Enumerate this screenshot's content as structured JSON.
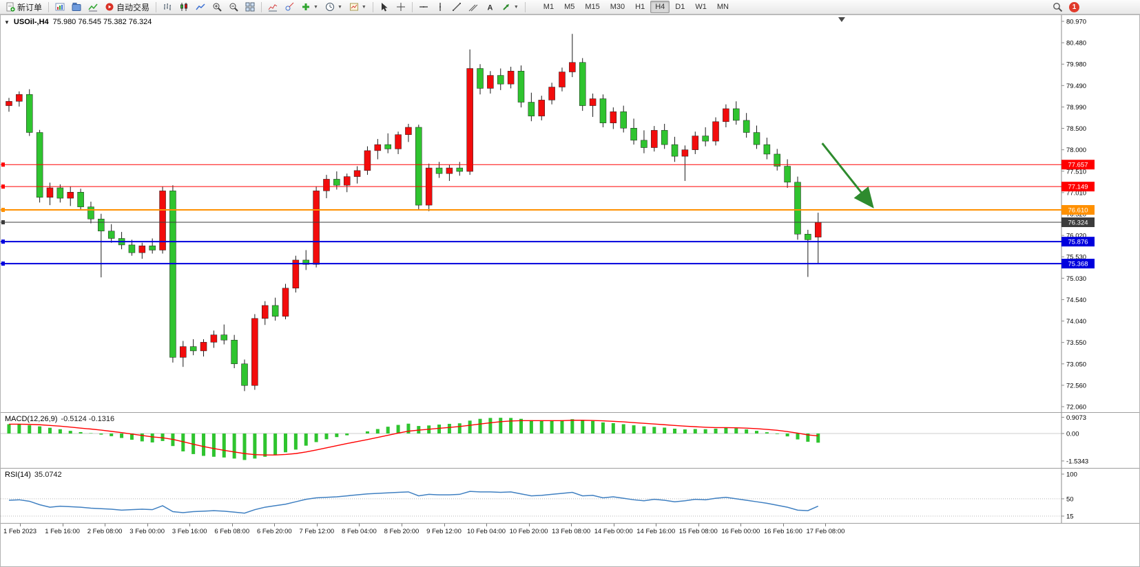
{
  "toolbar": {
    "new_order_label": "新订单",
    "auto_trading_label": "自动交易",
    "timeframes": [
      "M1",
      "M5",
      "M15",
      "M30",
      "H1",
      "H4",
      "D1",
      "W1",
      "MN"
    ],
    "active_timeframe": "H4",
    "notification_count": "1"
  },
  "chart": {
    "collapse_arrow": "▼",
    "symbol_period": "USOil-,H4",
    "ohlc": "75.980 76.545 75.382 76.324"
  },
  "chart_data": {
    "type": "candlestick",
    "symbol": "USOil-",
    "period": "H4",
    "colors": {
      "up": "#f20c0c",
      "down": "#2fc42f",
      "wick": "#1a1a1a",
      "macd_hist": "#2fc42f",
      "macd_signal": "#ff0000",
      "rsi_line": "#3e7fc1",
      "arrow": "#2e8b2e"
    },
    "price_axis": {
      "max": 80.97,
      "min": 72.06,
      "ticks": [
        "80.970",
        "80.480",
        "79.980",
        "79.490",
        "78.990",
        "78.500",
        "78.000",
        "77.510",
        "77.010",
        "76.520",
        "76.020",
        "75.530",
        "75.030",
        "74.540",
        "74.040",
        "73.550",
        "73.050",
        "72.560",
        "72.060"
      ]
    },
    "time_labels": [
      "1 Feb 2023",
      "1 Feb 16:00",
      "2 Feb 08:00",
      "3 Feb 00:00",
      "3 Feb 16:00",
      "6 Feb 08:00",
      "6 Feb 20:00",
      "7 Feb 12:00",
      "8 Feb 04:00",
      "8 Feb 20:00",
      "9 Feb 12:00",
      "10 Feb 04:00",
      "10 Feb 20:00",
      "13 Feb 08:00",
      "14 Feb 00:00",
      "14 Feb 16:00",
      "15 Feb 08:00",
      "16 Feb 00:00",
      "16 Feb 16:00",
      "17 Feb 08:00"
    ],
    "candles": [
      [
        79.02,
        79.2,
        78.88,
        79.12
      ],
      [
        79.12,
        79.35,
        79.0,
        79.28
      ],
      [
        79.28,
        79.4,
        78.32,
        78.4
      ],
      [
        78.4,
        78.46,
        76.78,
        76.9
      ],
      [
        76.9,
        77.24,
        76.72,
        77.12
      ],
      [
        77.12,
        77.2,
        76.78,
        76.88
      ],
      [
        76.88,
        77.15,
        76.7,
        77.02
      ],
      [
        77.02,
        77.1,
        76.6,
        76.68
      ],
      [
        76.68,
        76.8,
        76.3,
        76.4
      ],
      [
        76.4,
        76.52,
        75.05,
        76.12
      ],
      [
        76.12,
        76.28,
        75.85,
        75.95
      ],
      [
        75.95,
        76.1,
        75.7,
        75.8
      ],
      [
        75.8,
        75.92,
        75.55,
        75.62
      ],
      [
        75.62,
        75.85,
        75.48,
        75.78
      ],
      [
        75.78,
        75.95,
        75.6,
        75.68
      ],
      [
        75.68,
        77.15,
        75.6,
        77.05
      ],
      [
        77.05,
        77.18,
        73.08,
        73.2
      ],
      [
        73.2,
        73.58,
        72.98,
        73.45
      ],
      [
        73.45,
        73.62,
        73.25,
        73.35
      ],
      [
        73.35,
        73.62,
        73.22,
        73.55
      ],
      [
        73.55,
        73.82,
        73.42,
        73.72
      ],
      [
        73.72,
        73.96,
        73.5,
        73.6
      ],
      [
        73.6,
        73.72,
        72.95,
        73.05
      ],
      [
        73.05,
        73.15,
        72.42,
        72.55
      ],
      [
        72.55,
        74.2,
        72.45,
        74.1
      ],
      [
        74.1,
        74.5,
        73.95,
        74.4
      ],
      [
        74.4,
        74.58,
        74.05,
        74.15
      ],
      [
        74.15,
        74.9,
        74.08,
        74.8
      ],
      [
        74.8,
        75.55,
        74.7,
        75.45
      ],
      [
        75.45,
        75.68,
        75.22,
        75.35
      ],
      [
        75.35,
        77.15,
        75.28,
        77.05
      ],
      [
        77.05,
        77.42,
        76.88,
        77.32
      ],
      [
        77.32,
        77.5,
        77.08,
        77.18
      ],
      [
        77.18,
        77.45,
        77.02,
        77.38
      ],
      [
        77.38,
        77.62,
        77.22,
        77.52
      ],
      [
        77.52,
        78.08,
        77.42,
        77.98
      ],
      [
        77.98,
        78.25,
        77.78,
        78.12
      ],
      [
        78.12,
        78.38,
        77.92,
        78.02
      ],
      [
        78.02,
        78.42,
        77.9,
        78.35
      ],
      [
        78.35,
        78.6,
        78.18,
        78.52
      ],
      [
        78.52,
        78.58,
        76.62,
        76.72
      ],
      [
        76.72,
        77.68,
        76.58,
        77.58
      ],
      [
        77.58,
        77.72,
        77.35,
        77.45
      ],
      [
        77.45,
        77.65,
        77.28,
        77.58
      ],
      [
        77.58,
        77.72,
        77.4,
        77.5
      ],
      [
        77.5,
        80.32,
        77.42,
        79.88
      ],
      [
        79.88,
        79.98,
        79.28,
        79.42
      ],
      [
        79.42,
        79.82,
        79.3,
        79.72
      ],
      [
        79.72,
        79.88,
        79.38,
        79.52
      ],
      [
        79.52,
        79.92,
        79.42,
        79.82
      ],
      [
        79.82,
        79.95,
        78.98,
        79.1
      ],
      [
        79.1,
        79.32,
        78.66,
        78.78
      ],
      [
        78.78,
        79.25,
        78.68,
        79.15
      ],
      [
        79.15,
        79.55,
        79.05,
        79.45
      ],
      [
        79.45,
        79.9,
        79.35,
        79.8
      ],
      [
        79.8,
        80.68,
        79.68,
        80.02
      ],
      [
        80.02,
        80.12,
        78.9,
        79.02
      ],
      [
        79.02,
        79.3,
        78.76,
        79.18
      ],
      [
        79.18,
        79.28,
        78.52,
        78.62
      ],
      [
        78.62,
        78.98,
        78.48,
        78.88
      ],
      [
        78.88,
        79.02,
        78.4,
        78.5
      ],
      [
        78.5,
        78.72,
        78.12,
        78.22
      ],
      [
        78.22,
        78.45,
        77.92,
        78.05
      ],
      [
        78.05,
        78.55,
        77.96,
        78.45
      ],
      [
        78.45,
        78.6,
        78.02,
        78.12
      ],
      [
        78.12,
        78.3,
        77.72,
        77.85
      ],
      [
        77.85,
        78.1,
        77.28,
        78.0
      ],
      [
        78.0,
        78.42,
        77.9,
        78.32
      ],
      [
        78.32,
        78.52,
        78.08,
        78.2
      ],
      [
        78.2,
        78.75,
        78.1,
        78.65
      ],
      [
        78.65,
        79.05,
        78.52,
        78.95
      ],
      [
        78.95,
        79.12,
        78.58,
        78.68
      ],
      [
        78.68,
        78.85,
        78.28,
        78.4
      ],
      [
        78.4,
        78.56,
        78.02,
        78.12
      ],
      [
        78.12,
        78.28,
        77.78,
        77.9
      ],
      [
        77.9,
        78.02,
        77.52,
        77.62
      ],
      [
        77.62,
        77.78,
        77.12,
        77.25
      ],
      [
        77.25,
        77.38,
        75.92,
        76.05
      ],
      [
        76.05,
        76.15,
        75.06,
        75.92
      ],
      [
        75.98,
        76.545,
        75.382,
        76.324
      ]
    ],
    "hlines": [
      {
        "price": 77.657,
        "label": "77.657",
        "color": "#ff0000",
        "width": 1
      },
      {
        "price": 77.149,
        "label": "77.149",
        "color": "#ff0000",
        "width": 1
      },
      {
        "price": 76.61,
        "label": "76.610",
        "color": "#ff9000",
        "width": 2
      },
      {
        "price": 76.324,
        "label": "76.324",
        "color": "#3c3c3c",
        "width": 1
      },
      {
        "price": 75.876,
        "label": "75.876",
        "color": "#0000dd",
        "width": 2
      },
      {
        "price": 75.368,
        "label": "75.368",
        "color": "#0000dd",
        "width": 2
      }
    ],
    "arrow": {
      "start": {
        "bar": 79.4,
        "price": 78.15
      },
      "end": {
        "bar": 84.2,
        "price": 76.72
      },
      "color": "#2e8b2e"
    },
    "shift_marker_bar": 81.3,
    "macd": {
      "name": "MACD(12,26,9)",
      "values": "-0.5124 -0.1316",
      "axis": [
        "0.9073",
        "0.00",
        "-1.5343"
      ],
      "hist": [
        0.52,
        0.5,
        0.46,
        0.4,
        0.32,
        0.24,
        0.15,
        0.08,
        0.02,
        -0.06,
        -0.15,
        -0.25,
        -0.35,
        -0.44,
        -0.5,
        -0.42,
        -0.7,
        -1.0,
        -1.15,
        -1.25,
        -1.3,
        -1.34,
        -1.4,
        -1.48,
        -1.4,
        -1.3,
        -1.18,
        -1.05,
        -0.9,
        -0.68,
        -0.48,
        -0.32,
        -0.2,
        -0.1,
        0.0,
        0.12,
        0.25,
        0.38,
        0.48,
        0.55,
        0.42,
        0.45,
        0.5,
        0.54,
        0.57,
        0.72,
        0.82,
        0.87,
        0.88,
        0.87,
        0.82,
        0.74,
        0.7,
        0.71,
        0.74,
        0.8,
        0.76,
        0.7,
        0.62,
        0.58,
        0.52,
        0.46,
        0.4,
        0.37,
        0.33,
        0.27,
        0.23,
        0.25,
        0.24,
        0.27,
        0.31,
        0.29,
        0.23,
        0.15,
        0.07,
        -0.03,
        -0.16,
        -0.33,
        -0.46,
        -0.5124
      ],
      "signal": [
        0.52,
        0.52,
        0.51,
        0.49,
        0.45,
        0.41,
        0.36,
        0.3,
        0.25,
        0.19,
        0.12,
        0.05,
        -0.03,
        -0.11,
        -0.19,
        -0.24,
        -0.33,
        -0.46,
        -0.6,
        -0.73,
        -0.84,
        -0.94,
        -1.03,
        -1.12,
        -1.18,
        -1.2,
        -1.2,
        -1.17,
        -1.12,
        -1.03,
        -0.92,
        -0.8,
        -0.68,
        -0.56,
        -0.45,
        -0.34,
        -0.22,
        -0.1,
        0.02,
        0.13,
        0.19,
        0.24,
        0.29,
        0.34,
        0.39,
        0.46,
        0.53,
        0.6,
        0.66,
        0.7,
        0.72,
        0.72,
        0.72,
        0.72,
        0.72,
        0.74,
        0.74,
        0.73,
        0.71,
        0.68,
        0.65,
        0.61,
        0.57,
        0.53,
        0.49,
        0.45,
        0.41,
        0.38,
        0.35,
        0.33,
        0.33,
        0.32,
        0.3,
        0.27,
        0.23,
        0.18,
        0.11,
        0.02,
        -0.08,
        -0.1316
      ]
    },
    "rsi": {
      "name": "RSI(14)",
      "value": "35.0742",
      "axis": [
        "100",
        "50",
        "15"
      ],
      "levels": [
        50,
        15
      ],
      "values": [
        47,
        48,
        45,
        38,
        33,
        35,
        34,
        33,
        31,
        30,
        29,
        27,
        28,
        29,
        28,
        36,
        24,
        22,
        24,
        25,
        26,
        25,
        23,
        21,
        28,
        33,
        36,
        39,
        44,
        49,
        52,
        53,
        54,
        56,
        58,
        60,
        61,
        62,
        63,
        64,
        56,
        59,
        58,
        58,
        59,
        65,
        64,
        64,
        63,
        64,
        60,
        56,
        57,
        59,
        61,
        63,
        56,
        57,
        52,
        54,
        51,
        48,
        46,
        49,
        47,
        44,
        46,
        49,
        48,
        51,
        53,
        50,
        47,
        44,
        41,
        37,
        33,
        27,
        26,
        35.07
      ]
    }
  }
}
